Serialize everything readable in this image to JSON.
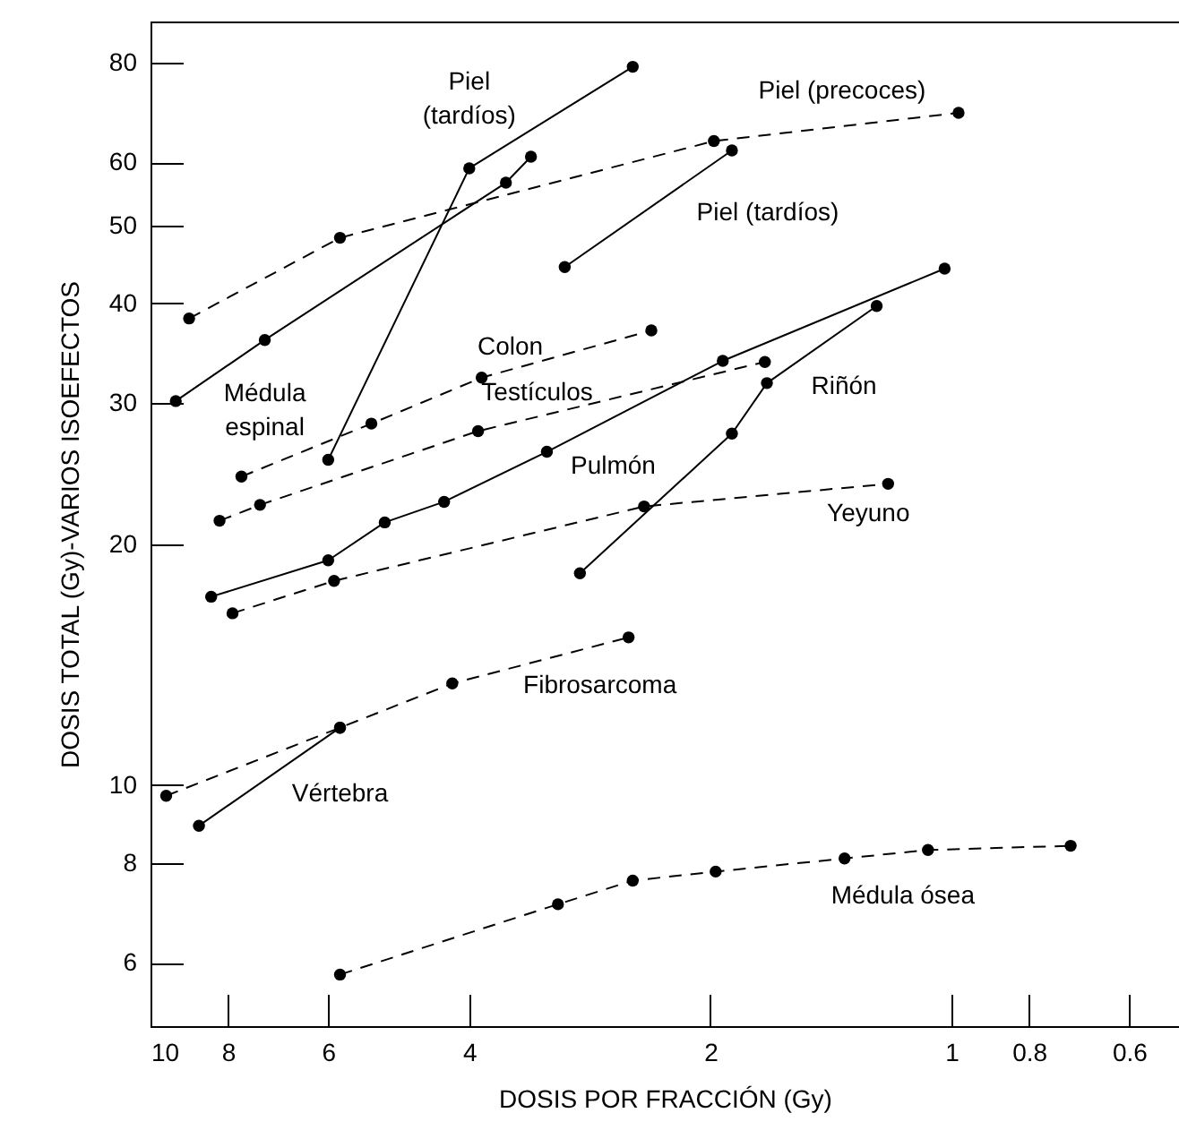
{
  "chart_data": {
    "type": "line",
    "xlabel": "DOSIS POR FRACCIÓN (Gy)",
    "ylabel": "DOSIS TOTAL (Gy)-VARIOS ISOEFECTOS",
    "log": "xy",
    "grid": false,
    "marker": "circle",
    "xlim": [
      10,
      0.52
    ],
    "ylim": [
      5,
      90
    ],
    "xticks": [
      10,
      8,
      6,
      4,
      2,
      1,
      0.8,
      0.6
    ],
    "yticks": [
      6,
      8,
      10,
      20,
      30,
      40,
      50,
      60,
      80
    ],
    "series": [
      {
        "name": "Piel (tardíos)",
        "color": "#000000",
        "line_style": "solid",
        "x": [
          6.0,
          4.0,
          2.5
        ],
        "values": [
          25.5,
          59,
          79
        ]
      },
      {
        "name": "Médula espinal",
        "color": "#000000",
        "line_style": "solid",
        "x": [
          9.3,
          7.2,
          3.6,
          3.35
        ],
        "values": [
          30.2,
          36,
          56.6,
          61
        ]
      },
      {
        "name": "Piel (precoces)",
        "color": "#000000",
        "line_style": "dashed",
        "x": [
          8.95,
          5.8,
          1.98,
          0.98
        ],
        "values": [
          38.3,
          48.3,
          63.8,
          69.2
        ]
      },
      {
        "name": "Piel (tardíos)",
        "color": "#000000",
        "line_style": "solid",
        "x": [
          3.04,
          1.88
        ],
        "values": [
          44.4,
          62.1
        ]
      },
      {
        "name": "Colon",
        "color": "#000000",
        "line_style": "dashed",
        "x": [
          7.7,
          5.3,
          3.86,
          2.37
        ],
        "values": [
          24.3,
          28.3,
          32.3,
          37
        ]
      },
      {
        "name": "Testículos",
        "color": "#000000",
        "line_style": "dashed",
        "x": [
          8.2,
          7.3,
          3.9,
          1.71
        ],
        "values": [
          21.4,
          22.4,
          27.7,
          33.8
        ]
      },
      {
        "name": "Pulmón",
        "color": "#000000",
        "line_style": "solid",
        "x": [
          8.4,
          6.0,
          5.1,
          4.3,
          3.2,
          1.93,
          1.02
        ],
        "values": [
          17.2,
          19.1,
          21.3,
          22.6,
          26.1,
          33.9,
          44.2
        ]
      },
      {
        "name": "Riñón",
        "color": "#000000",
        "line_style": "solid",
        "x": [
          2.91,
          1.88,
          1.7,
          1.24
        ],
        "values": [
          18.4,
          27.5,
          31.8,
          39.7
        ]
      },
      {
        "name": "Yeyuno",
        "color": "#000000",
        "line_style": "dashed",
        "x": [
          7.9,
          5.9,
          2.42,
          1.2
        ],
        "values": [
          16.4,
          18.0,
          22.3,
          23.8
        ]
      },
      {
        "name": "Fibrosarcoma",
        "color": "#000000",
        "line_style": "dashed",
        "x": [
          9.56,
          5.8,
          4.2,
          2.53
        ],
        "values": [
          9.7,
          11.8,
          13.4,
          15.3
        ]
      },
      {
        "name": "Vértebra",
        "color": "#000000",
        "line_style": "solid",
        "x": [
          8.7,
          5.8
        ],
        "values": [
          8.9,
          11.8
        ]
      },
      {
        "name": "Médula ósea",
        "color": "#000000",
        "line_style": "dashed",
        "x": [
          5.8,
          3.1,
          2.5,
          1.97,
          1.36,
          1.07,
          0.71
        ],
        "values": [
          5.8,
          7.1,
          7.6,
          7.8,
          8.1,
          8.3,
          8.4
        ]
      }
    ]
  }
}
